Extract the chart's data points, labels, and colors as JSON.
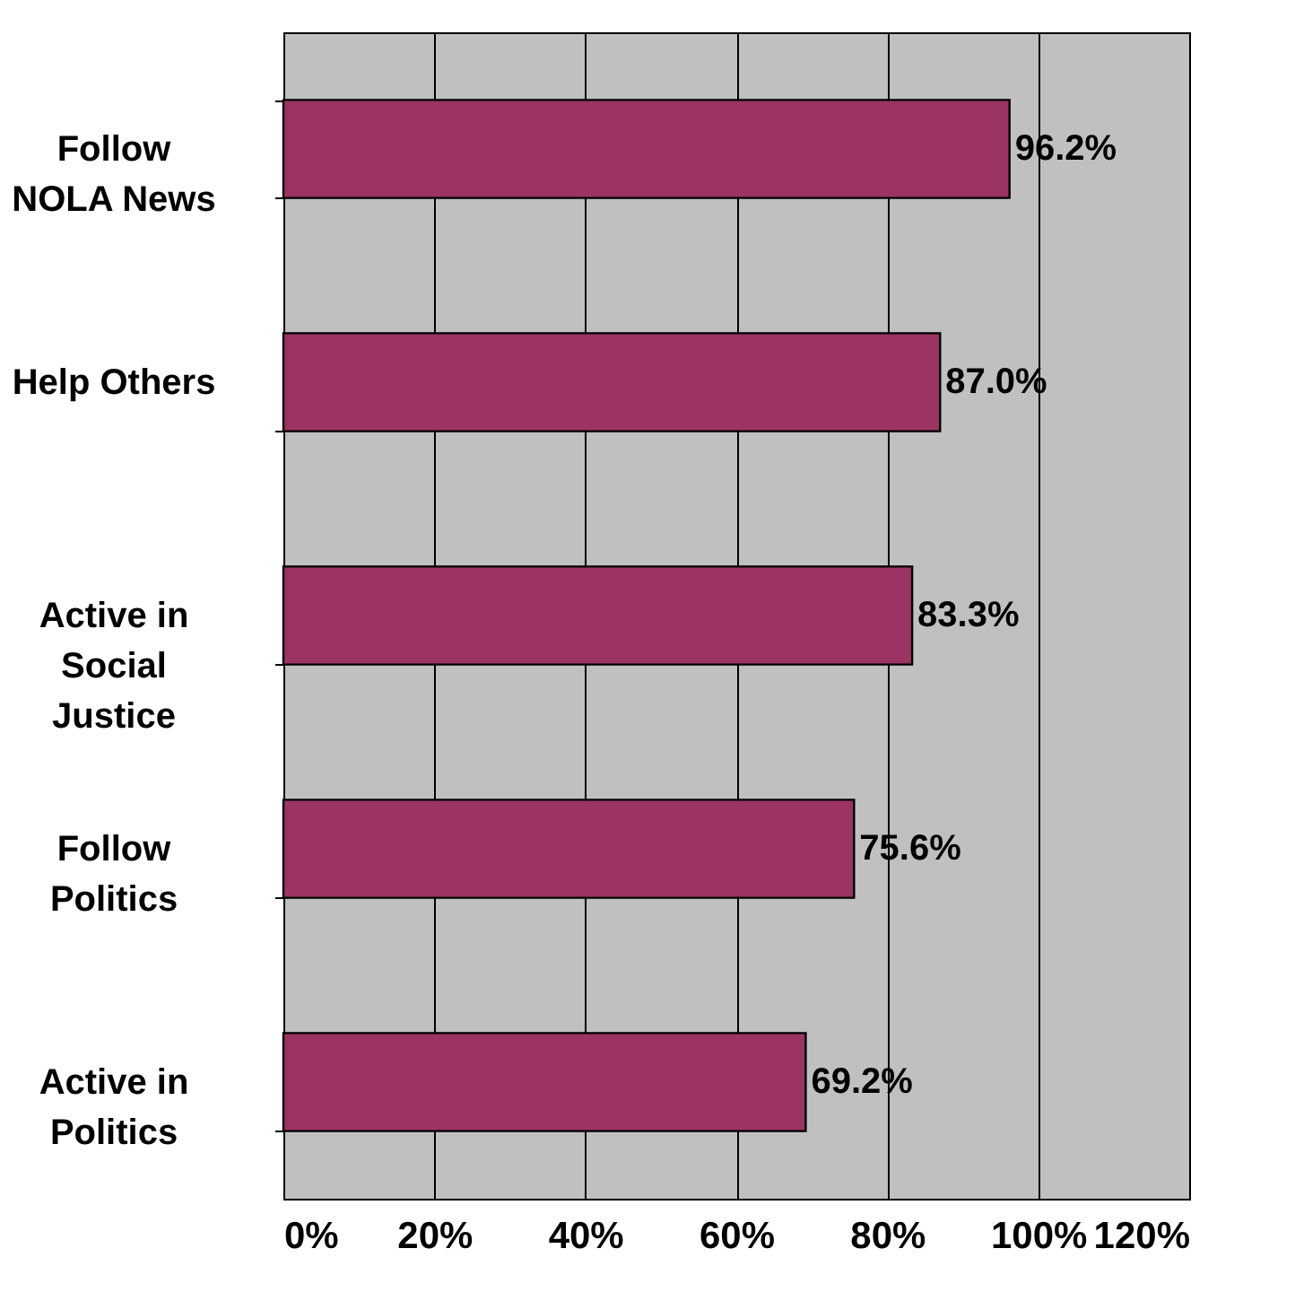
{
  "chart_data": {
    "type": "bar",
    "orientation": "horizontal",
    "categories": [
      "Follow\nNOLA News",
      "Help Others",
      "Active in\nSocial\nJustice",
      "Follow\nPolitics",
      "Active in\nPolitics"
    ],
    "values": [
      96.2,
      87.0,
      83.3,
      75.6,
      69.2
    ],
    "value_labels": [
      "96.2%",
      "87.0%",
      "83.3%",
      "75.6%",
      "69.2%"
    ],
    "color": "#9b3462",
    "xlim": [
      0,
      120
    ],
    "xticks": [
      {
        "value": 0,
        "label": "0%"
      },
      {
        "value": 20,
        "label": "20%"
      },
      {
        "value": 40,
        "label": "40%"
      },
      {
        "value": 60,
        "label": "60%"
      },
      {
        "value": 80,
        "label": "80%"
      },
      {
        "value": 100,
        "label": "100%"
      },
      {
        "value": 120,
        "label": "120%"
      }
    ],
    "grid": "x"
  }
}
